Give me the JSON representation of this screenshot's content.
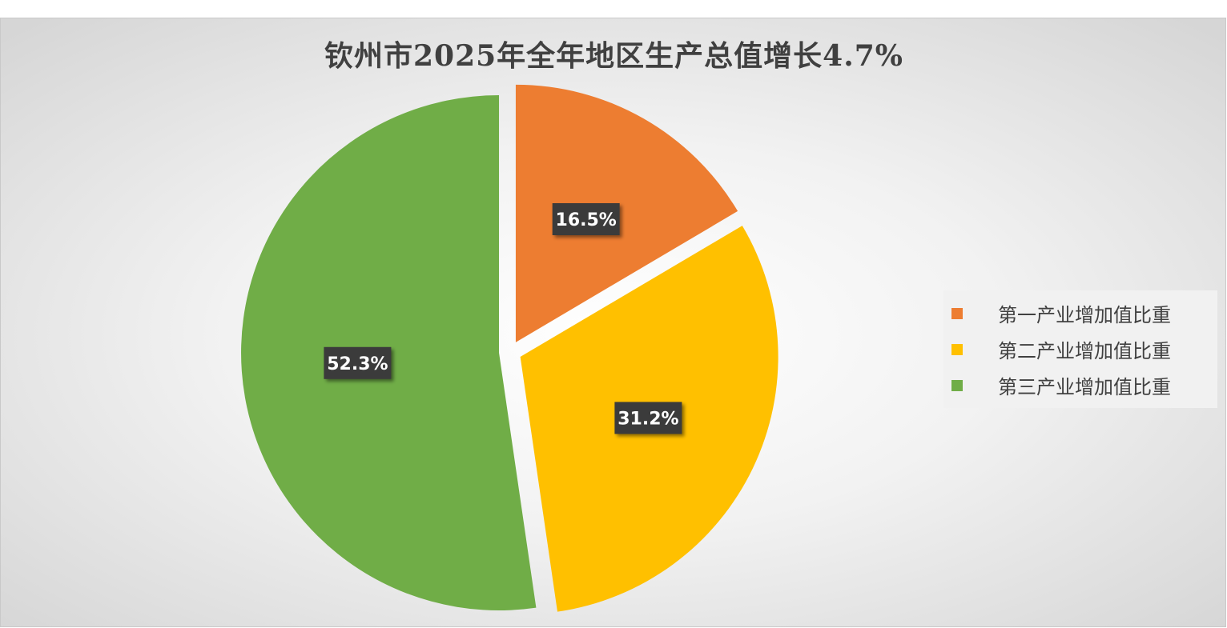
{
  "chart_data": {
    "type": "pie",
    "title": "钦州市2025年全年地区生产总值增长4.7%",
    "categories": [
      "第一产业增加值比重",
      "第二产业增加值比重",
      "第三产业增加值比重"
    ],
    "values": [
      16.5,
      31.2,
      52.3
    ],
    "data_labels": [
      "16.5%",
      "31.2%",
      "52.3%"
    ],
    "colors": [
      "#ed7d31",
      "#ffc000",
      "#70ad47"
    ],
    "legend_position": "right",
    "exploded": true
  }
}
